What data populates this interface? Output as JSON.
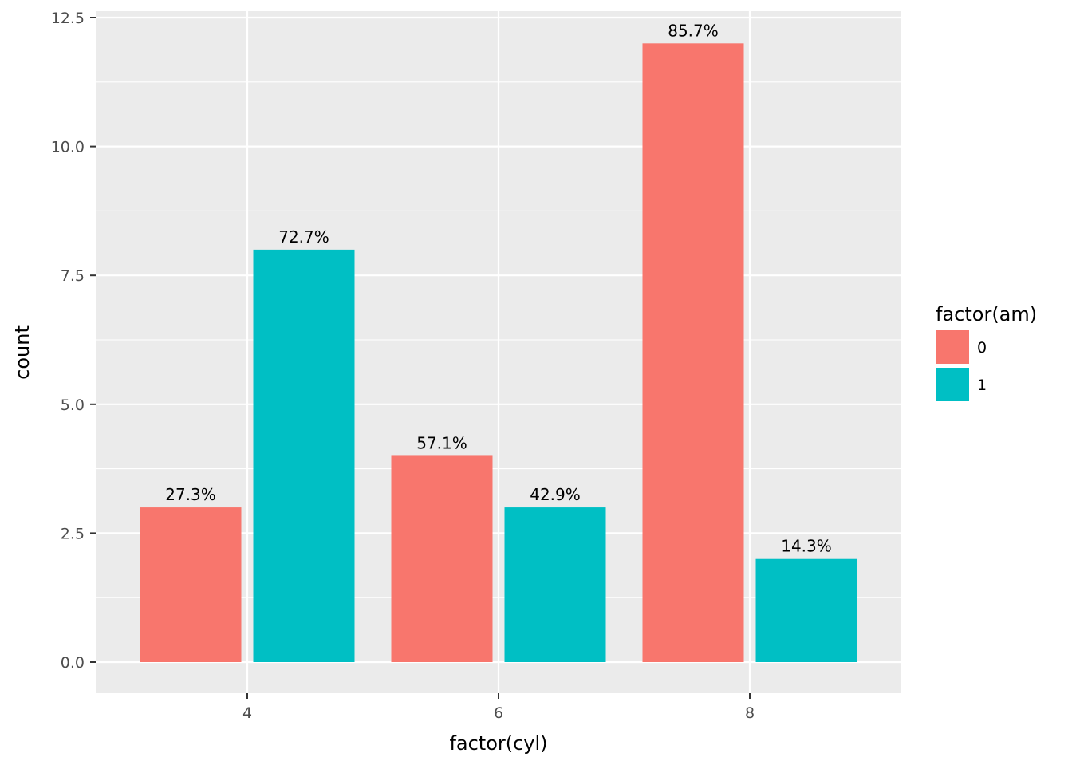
{
  "chart_data": {
    "type": "bar",
    "title": "",
    "xlabel": "factor(cyl)",
    "ylabel": "count",
    "categories": [
      "4",
      "6",
      "8"
    ],
    "ylim": [
      -0.6,
      12.6
    ],
    "yticks": [
      0,
      2.5,
      5,
      7.5,
      10,
      12.5
    ],
    "ytick_labels": [
      "0.0",
      "2.5",
      "5.0",
      "7.5",
      "10.0",
      "12.5"
    ],
    "grid": true,
    "legend": {
      "title": "factor(am)",
      "placement": "right"
    },
    "series": [
      {
        "name": "0",
        "color": "#F8766D",
        "values": [
          3,
          4,
          12
        ],
        "labels": [
          "27.3%",
          "57.1%",
          "85.7%"
        ]
      },
      {
        "name": "1",
        "color": "#00BFC4",
        "values": [
          8,
          3,
          2
        ],
        "labels": [
          "72.7%",
          "42.9%",
          "14.3%"
        ]
      }
    ]
  }
}
